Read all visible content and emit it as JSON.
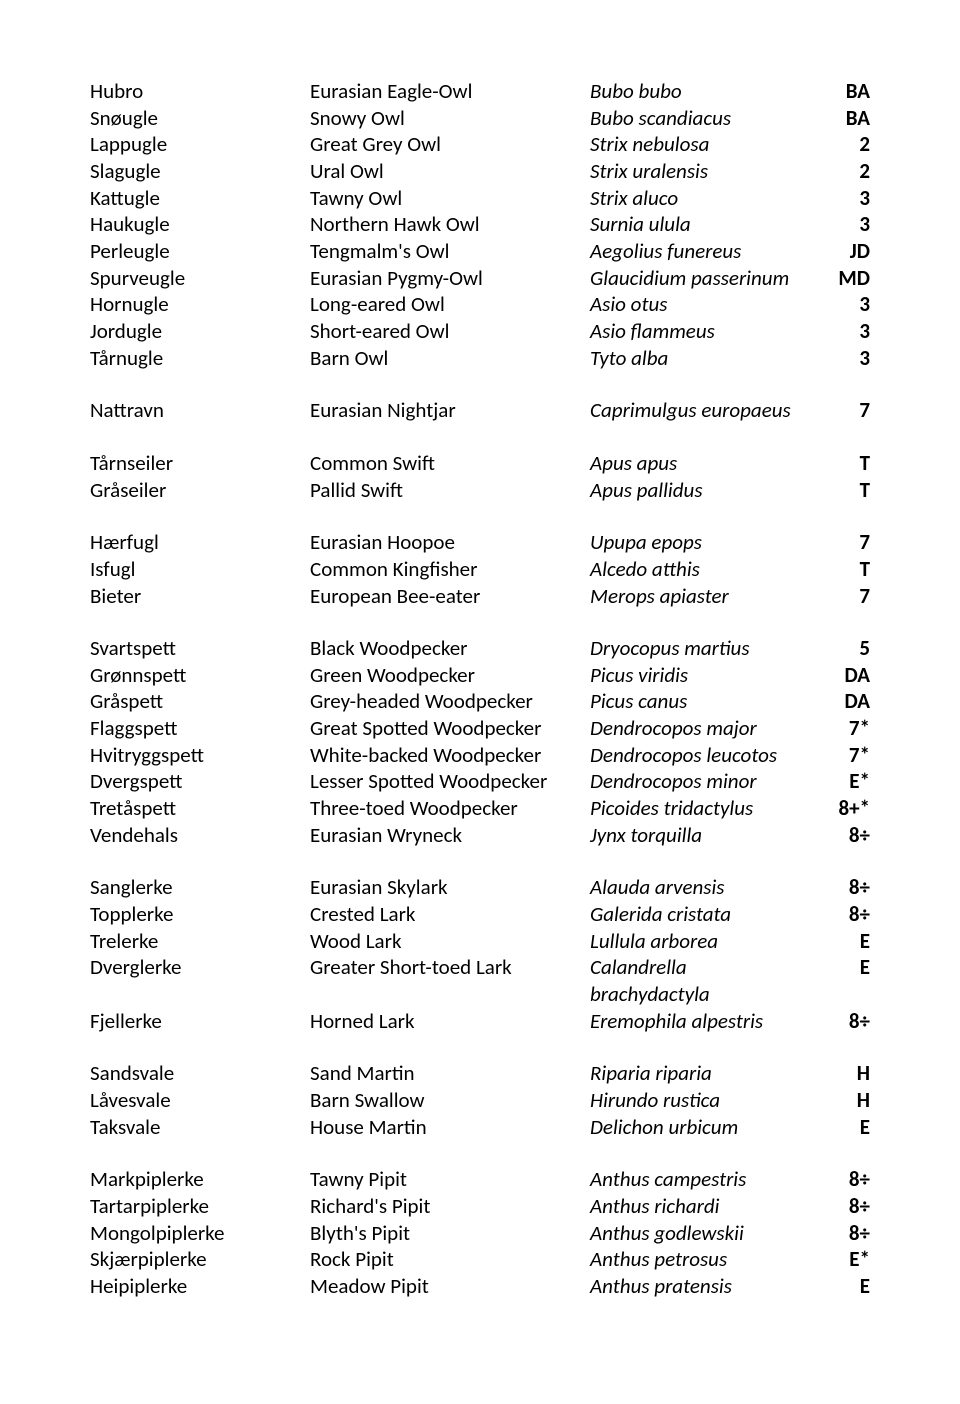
{
  "groups": [
    {
      "rows": [
        {
          "n": "Hubro",
          "e": "Eurasian Eagle-Owl",
          "s": "Bubo bubo",
          "c": "BA"
        },
        {
          "n": "Snøugle",
          "e": "Snowy Owl",
          "s": "Bubo scandiacus",
          "c": "BA"
        },
        {
          "n": "Lappugle",
          "e": "Great Grey Owl",
          "s": "Strix nebulosa",
          "c": "2"
        },
        {
          "n": "Slagugle",
          "e": "Ural Owl",
          "s": "Strix uralensis",
          "c": "2"
        },
        {
          "n": "Kattugle",
          "e": "Tawny Owl",
          "s": "Strix aluco",
          "c": "3"
        },
        {
          "n": "Haukugle",
          "e": "Northern Hawk Owl",
          "s": "Surnia ulula",
          "c": "3"
        },
        {
          "n": "Perleugle",
          "e": "Tengmalm's Owl",
          "s": "Aegolius funereus",
          "c": "JD"
        },
        {
          "n": "Spurveugle",
          "e": "Eurasian Pygmy-Owl",
          "s": "Glaucidium passerinum",
          "c": "MD"
        },
        {
          "n": "Hornugle",
          "e": "Long-eared Owl",
          "s": "Asio otus",
          "c": "3"
        },
        {
          "n": "Jordugle",
          "e": "Short-eared Owl",
          "s": "Asio flammeus",
          "c": "3"
        },
        {
          "n": "Tårnugle",
          "e": "Barn Owl",
          "s": "Tyto alba",
          "c": "3"
        }
      ]
    },
    {
      "rows": [
        {
          "n": "Nattravn",
          "e": "Eurasian Nightjar",
          "s": "Caprimulgus europaeus",
          "c": "7"
        }
      ]
    },
    {
      "rows": [
        {
          "n": "Tårnseiler",
          "e": "Common Swift",
          "s": "Apus apus",
          "c": "T"
        },
        {
          "n": "Gråseiler",
          "e": "Pallid Swift",
          "s": "Apus pallidus",
          "c": "T"
        }
      ]
    },
    {
      "rows": [
        {
          "n": "Hærfugl",
          "e": "Eurasian Hoopoe",
          "s": "Upupa epops",
          "c": "7"
        },
        {
          "n": "Isfugl",
          "e": "Common Kingfisher",
          "s": "Alcedo atthis",
          "c": "T"
        },
        {
          "n": "Bieter",
          "e": "European Bee-eater",
          "s": "Merops apiaster",
          "c": "7"
        }
      ]
    },
    {
      "rows": [
        {
          "n": "Svartspett",
          "e": "Black Woodpecker",
          "s": "Dryocopus martius",
          "c": "5"
        },
        {
          "n": "Grønnspett",
          "e": "Green Woodpecker",
          "s": "Picus viridis",
          "c": "DA"
        },
        {
          "n": "Gråspett",
          "e": "Grey-headed Woodpecker",
          "s": "Picus canus",
          "c": "DA"
        },
        {
          "n": "Flaggspett",
          "e": "Great Spotted Woodpecker",
          "s": "Dendrocopos major",
          "c": "7*"
        },
        {
          "n": "Hvitryggspett",
          "e": "White-backed Woodpecker",
          "s": "Dendrocopos leucotos",
          "c": "7*"
        },
        {
          "n": "Dvergspett",
          "e": "Lesser Spotted Woodpecker",
          "s": "Dendrocopos minor",
          "c": "E*"
        },
        {
          "n": "Tretåspett",
          "e": "Three-toed Woodpecker",
          "s": "Picoides tridactylus",
          "c": "8+*"
        },
        {
          "n": "Vendehals",
          "e": "Eurasian Wryneck",
          "s": "Jynx torquilla",
          "c": "8÷"
        }
      ]
    },
    {
      "rows": [
        {
          "n": "Sanglerke",
          "e": "Eurasian Skylark",
          "s": "Alauda arvensis",
          "c": "8÷"
        },
        {
          "n": "Topplerke",
          "e": "Crested Lark",
          "s": "Galerida cristata",
          "c": "8÷"
        },
        {
          "n": "Trelerke",
          "e": "Wood Lark",
          "s": "Lullula arborea",
          "c": "E"
        },
        {
          "n": "Dverglerke",
          "e": "Greater Short-toed Lark",
          "s": "Calandrella brachydactyla",
          "c": "E"
        },
        {
          "n": "Fjellerke",
          "e": "Horned Lark",
          "s": "Eremophila alpestris",
          "c": "8÷"
        }
      ]
    },
    {
      "rows": [
        {
          "n": "Sandsvale",
          "e": "Sand Martin",
          "s": "Riparia riparia",
          "c": "H"
        },
        {
          "n": "Låvesvale",
          "e": "Barn Swallow",
          "s": "Hirundo rustica",
          "c": "H"
        },
        {
          "n": "Taksvale",
          "e": "House Martin",
          "s": "Delichon urbicum",
          "c": "E"
        }
      ]
    },
    {
      "rows": [
        {
          "n": "Markpiplerke",
          "e": "Tawny Pipit",
          "s": "Anthus campestris",
          "c": "8÷"
        },
        {
          "n": "Tartarpiplerke",
          "e": "Richard's Pipit",
          "s": "Anthus richardi",
          "c": "8÷"
        },
        {
          "n": "Mongolpiplerke",
          "e": "Blyth's Pipit",
          "s": "Anthus godlewskii",
          "c": "8÷"
        },
        {
          "n": "Skjærpiplerke",
          "e": "Rock Pipit",
          "s": "Anthus petrosus",
          "c": "E*"
        },
        {
          "n": "Heipiplerke",
          "e": "Meadow Pipit",
          "s": "Anthus pratensis",
          "c": "E"
        }
      ]
    }
  ]
}
